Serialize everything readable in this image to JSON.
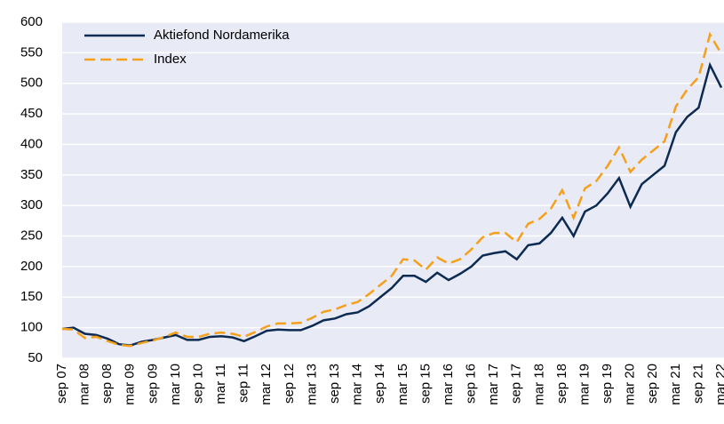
{
  "chart_data": {
    "type": "line",
    "categories": [
      "sep 07",
      null,
      "mar 08",
      null,
      "sep 08",
      null,
      "mar 09",
      null,
      "sep 09",
      null,
      "mar 10",
      null,
      "sep 10",
      null,
      "mar 11",
      null,
      "sep 11",
      null,
      "mar 12",
      null,
      "sep 12",
      null,
      "mar 13",
      null,
      "sep 13",
      null,
      "mar 14",
      null,
      "sep 14",
      null,
      "mar 15",
      null,
      "sep 15",
      null,
      "mar 16",
      null,
      "sep 16",
      null,
      "mar 17",
      null,
      "sep 17",
      null,
      "mar 18",
      null,
      "sep 18",
      null,
      "mar 19",
      null,
      "sep 19",
      null,
      "mar 20",
      null,
      "sep 20",
      null,
      "mar 21",
      null,
      "sep 21",
      null,
      "mar 22"
    ],
    "series": [
      {
        "name": "Aktiefond Nordamerika",
        "color": "#0d2b52",
        "dash": false,
        "values": [
          98,
          100,
          90,
          88,
          82,
          73,
          71,
          77,
          80,
          84,
          88,
          80,
          80,
          85,
          86,
          84,
          78,
          86,
          95,
          97,
          96,
          96,
          103,
          112,
          115,
          122,
          125,
          135,
          150,
          165,
          185,
          185,
          175,
          190,
          178,
          188,
          200,
          218,
          222,
          225,
          212,
          235,
          238,
          255,
          280,
          250,
          290,
          300,
          320,
          345,
          298,
          335,
          350,
          365,
          420,
          445,
          460,
          530,
          493
        ]
      },
      {
        "name": "Index",
        "color": "#f5a01a",
        "dash": true,
        "values": [
          98,
          97,
          83,
          85,
          78,
          72,
          70,
          75,
          79,
          85,
          92,
          85,
          85,
          90,
          92,
          90,
          85,
          93,
          102,
          107,
          107,
          108,
          116,
          126,
          130,
          137,
          142,
          155,
          170,
          185,
          212,
          210,
          195,
          215,
          205,
          212,
          228,
          248,
          255,
          255,
          240,
          270,
          278,
          295,
          325,
          280,
          328,
          340,
          365,
          395,
          355,
          375,
          390,
          405,
          462,
          490,
          510,
          580,
          548
        ]
      }
    ],
    "ylim": [
      50,
      600
    ],
    "yticks": [
      50,
      100,
      150,
      200,
      250,
      300,
      350,
      400,
      450,
      500,
      550,
      600
    ],
    "grid": true,
    "legend": "top-left"
  }
}
